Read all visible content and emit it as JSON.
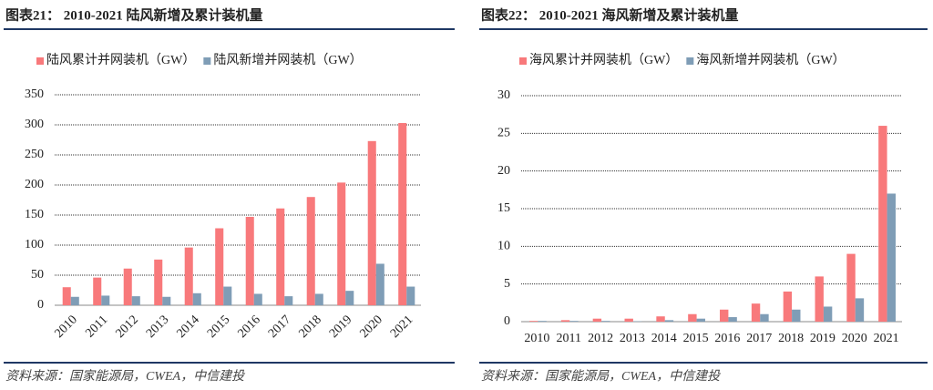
{
  "chart_data": [
    {
      "type": "bar",
      "title": "图表21： 2010-2021 陆风新增及累计装机量",
      "source": "资料来源：国家能源局，CWEA，中信建投",
      "categories": [
        "2010",
        "2011",
        "2012",
        "2013",
        "2014",
        "2015",
        "2016",
        "2017",
        "2018",
        "2019",
        "2020",
        "2021"
      ],
      "series": [
        {
          "name": "陆风累计并网装机（GW）",
          "color": "#f8797b",
          "values": [
            30,
            46,
            61,
            76,
            96,
            128,
            147,
            161,
            180,
            204,
            273,
            303
          ]
        },
        {
          "name": "陆风新增并网装机（GW）",
          "color": "#7f9db6",
          "values": [
            14,
            16,
            15,
            14,
            20,
            31,
            19,
            15,
            19,
            24,
            69,
            31
          ]
        }
      ],
      "ylim": [
        0,
        350
      ],
      "yticks": [
        0,
        50,
        100,
        150,
        200,
        250,
        300,
        350
      ],
      "grid": true,
      "legend": "top"
    },
    {
      "type": "bar",
      "title": "图表22： 2010-2021 海风新增及累计装机量",
      "source": "资料来源：国家能源局，CWEA，中信建投",
      "categories": [
        "2010",
        "2011",
        "2012",
        "2013",
        "2014",
        "2015",
        "2016",
        "2017",
        "2018",
        "2019",
        "2020",
        "2021"
      ],
      "series": [
        {
          "name": "海风累计并网装机（GW）",
          "color": "#f8797b",
          "values": [
            0.1,
            0.2,
            0.4,
            0.4,
            0.7,
            1.0,
            1.6,
            2.4,
            4.0,
            6.0,
            9.0,
            26
          ]
        },
        {
          "name": "海风新增并网装机（GW）",
          "color": "#7f9db6",
          "values": [
            0.1,
            0.1,
            0.1,
            0.05,
            0.2,
            0.4,
            0.6,
            1.0,
            1.6,
            2.0,
            3.1,
            17
          ]
        }
      ],
      "ylim": [
        0,
        30
      ],
      "yticks": [
        0,
        5,
        10,
        15,
        20,
        25,
        30
      ],
      "grid": true,
      "legend": "top"
    }
  ]
}
